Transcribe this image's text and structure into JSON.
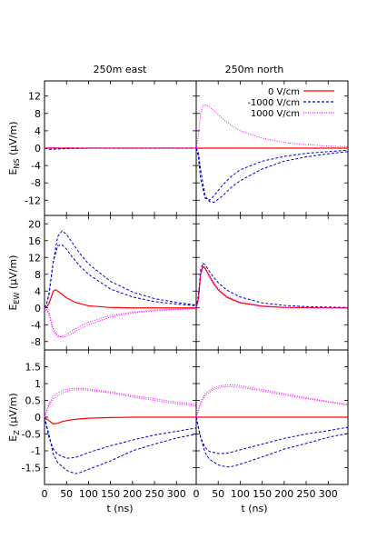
{
  "figure": {
    "columns": [
      "250m east",
      "250m north"
    ],
    "legend": {
      "placement": "top-right of top-right panel",
      "entries": [
        {
          "label": "0 V/cm",
          "color": "#ff0000",
          "dash": "solid"
        },
        {
          "label": "-1000 V/cm",
          "color": "#0000cc",
          "dash": "dashed"
        },
        {
          "label": "1000 V/cm",
          "color": "#ff00ff",
          "dash": "dotted"
        }
      ]
    },
    "xlabel": "t (ns)",
    "xticks": [
      0,
      50,
      100,
      150,
      200,
      250,
      300
    ],
    "xlim": [
      0,
      345
    ]
  },
  "chart_data": [
    {
      "type": "line",
      "column": "250m east",
      "row": 0,
      "ylabel_main": "E",
      "ylabel_sub": "NS",
      "ylabel_unit": "(µV/m)",
      "ylim": [
        -15.5,
        15.5
      ],
      "yticks": [
        -12,
        -8,
        -4,
        0,
        4,
        8,
        12
      ],
      "series": [
        {
          "name": "0 V/cm",
          "x": [
            0,
            50,
            100,
            200,
            345
          ],
          "y": [
            0,
            0,
            0,
            0,
            0
          ]
        },
        {
          "name": "-1000 V/cm",
          "x": [
            0,
            15,
            30,
            50,
            100,
            200,
            345
          ],
          "y": [
            0,
            -0.3,
            -0.2,
            -0.1,
            0,
            0,
            0
          ]
        },
        {
          "name": "1000 V/cm",
          "x": [
            0,
            15,
            30,
            50,
            100,
            200,
            345
          ],
          "y": [
            0,
            0.2,
            0.1,
            0.1,
            0,
            0,
            0
          ]
        }
      ]
    },
    {
      "type": "line",
      "column": "250m north",
      "row": 0,
      "ylabel_main": "E",
      "ylabel_sub": "NS",
      "ylabel_unit": "(µV/m)",
      "ylim": [
        -15.5,
        15.5
      ],
      "yticks": [
        -12,
        -8,
        -4,
        0,
        4,
        8,
        12
      ],
      "series": [
        {
          "name": "0 V/cm",
          "x": [
            0,
            50,
            100,
            200,
            345
          ],
          "y": [
            0,
            0,
            0,
            0,
            0
          ]
        },
        {
          "name": "-1000 V/cm",
          "x": [
            0,
            5,
            10,
            20,
            30,
            40,
            60,
            80,
            100,
            150,
            200,
            250,
            300,
            345
          ],
          "y": [
            0,
            -1,
            -5,
            -11,
            -12.3,
            -12.5,
            -11,
            -9,
            -7.5,
            -4.8,
            -3,
            -2,
            -1.3,
            -0.8
          ]
        },
        {
          "name": "-1000 V/cm",
          "x": [
            0,
            5,
            10,
            20,
            30,
            40,
            60,
            80,
            100,
            150,
            200,
            250,
            300,
            345
          ],
          "y": [
            0,
            -2,
            -7,
            -11.5,
            -12,
            -11,
            -8.5,
            -6.5,
            -5,
            -3,
            -1.9,
            -1.2,
            -0.8,
            -0.5
          ]
        },
        {
          "name": "1000 V/cm",
          "x": [
            0,
            5,
            10,
            15,
            20,
            30,
            40,
            60,
            80,
            100,
            150,
            200,
            250,
            300,
            345
          ],
          "y": [
            0,
            3,
            8,
            9.8,
            10,
            9.5,
            8.6,
            6.8,
            5.2,
            4,
            2.3,
            1.3,
            0.8,
            0.5,
            0.3
          ]
        }
      ]
    },
    {
      "type": "line",
      "column": "250m east",
      "row": 1,
      "ylabel_main": "E",
      "ylabel_sub": "EW",
      "ylabel_unit": "(µV/m)",
      "ylim": [
        -10,
        22
      ],
      "yticks": [
        -8,
        -4,
        0,
        4,
        8,
        12,
        16,
        20
      ],
      "series": [
        {
          "name": "0 V/cm",
          "x": [
            0,
            5,
            10,
            15,
            20,
            25,
            30,
            40,
            50,
            70,
            100,
            150,
            200,
            345
          ],
          "y": [
            0,
            0.2,
            1,
            2.5,
            4,
            4.3,
            4,
            3.2,
            2.4,
            1.3,
            0.5,
            0.1,
            0,
            0
          ]
        },
        {
          "name": "-1000 V/cm",
          "x": [
            0,
            5,
            10,
            20,
            30,
            40,
            50,
            60,
            80,
            100,
            150,
            200,
            250,
            300,
            345
          ],
          "y": [
            0,
            1,
            3,
            11,
            17,
            18.3,
            17.5,
            16,
            13,
            10.5,
            6.3,
            3.8,
            2.2,
            1.3,
            0.7
          ]
        },
        {
          "name": "-1000 V/cm",
          "x": [
            0,
            5,
            10,
            20,
            30,
            40,
            50,
            60,
            80,
            100,
            150,
            200,
            250,
            300,
            345
          ],
          "y": [
            0,
            1,
            3.5,
            11,
            14.8,
            15,
            14,
            12.5,
            10,
            8,
            4.5,
            2.6,
            1.5,
            0.9,
            0.5
          ]
        },
        {
          "name": "1000 V/cm",
          "x": [
            0,
            10,
            20,
            30,
            40,
            50,
            60,
            80,
            100,
            150,
            200,
            250,
            300,
            345
          ],
          "y": [
            0,
            -1,
            -5,
            -6.5,
            -7,
            -6.8,
            -6.2,
            -5,
            -4,
            -2.2,
            -1.2,
            -0.7,
            -0.4,
            -0.2
          ]
        },
        {
          "name": "1000 V/cm",
          "x": [
            0,
            10,
            20,
            30,
            40,
            50,
            60,
            80,
            100,
            150,
            200,
            250,
            300,
            345
          ],
          "y": [
            0,
            -1.5,
            -5.5,
            -6.8,
            -6.8,
            -6.3,
            -5.6,
            -4.4,
            -3.4,
            -1.8,
            -1,
            -0.5,
            -0.3,
            -0.1
          ]
        }
      ]
    },
    {
      "type": "line",
      "column": "250m north",
      "row": 1,
      "ylabel_main": "E",
      "ylabel_sub": "EW",
      "ylabel_unit": "(µV/m)",
      "ylim": [
        -10,
        22
      ],
      "yticks": [
        -8,
        -4,
        0,
        4,
        8,
        12,
        16,
        20
      ],
      "series": [
        {
          "name": "0 V/cm",
          "x": [
            0,
            5,
            10,
            15,
            20,
            30,
            40,
            50,
            70,
            100,
            150,
            200,
            345
          ],
          "y": [
            0,
            2,
            8,
            9.8,
            9.5,
            7.5,
            5.7,
            4.3,
            2.5,
            1.2,
            0.4,
            0.1,
            0
          ]
        },
        {
          "name": "-1000 V/cm",
          "x": [
            0,
            5,
            10,
            15,
            20,
            30,
            40,
            50,
            70,
            100,
            150,
            200,
            250,
            345
          ],
          "y": [
            0,
            3,
            9,
            10.6,
            10.3,
            8.7,
            7.2,
            6,
            4.2,
            2.6,
            1.2,
            0.6,
            0.3,
            0.1
          ]
        },
        {
          "name": "1000 V/cm",
          "x": [
            0,
            5,
            10,
            15,
            20,
            30,
            40,
            50,
            70,
            100,
            150,
            200,
            345
          ],
          "y": [
            0,
            2.5,
            8.5,
            10.2,
            9.7,
            7.8,
            6,
            4.6,
            2.8,
            1.4,
            0.5,
            0.2,
            0
          ]
        }
      ]
    },
    {
      "type": "line",
      "column": "250m east",
      "row": 2,
      "ylabel_main": "E",
      "ylabel_sub": "Z",
      "ylabel_unit": "(µV/m)",
      "ylim": [
        -2,
        2
      ],
      "yticks": [
        -1.5,
        -1,
        -0.5,
        0,
        0.5,
        1,
        1.5
      ],
      "series": [
        {
          "name": "0 V/cm",
          "x": [
            0,
            10,
            20,
            30,
            40,
            60,
            80,
            100,
            150,
            200,
            345
          ],
          "y": [
            0,
            -0.1,
            -0.2,
            -0.18,
            -0.13,
            -0.08,
            -0.05,
            -0.03,
            -0.01,
            0,
            0
          ]
        },
        {
          "name": "-1000 V/cm",
          "x": [
            0,
            10,
            20,
            30,
            50,
            70,
            80,
            100,
            150,
            200,
            250,
            300,
            345
          ],
          "y": [
            0,
            -0.5,
            -1.1,
            -1.35,
            -1.58,
            -1.68,
            -1.65,
            -1.55,
            -1.3,
            -1,
            -0.8,
            -0.62,
            -0.5
          ]
        },
        {
          "name": "-1000 V/cm",
          "x": [
            0,
            10,
            20,
            30,
            50,
            70,
            80,
            100,
            150,
            200,
            250,
            300,
            345
          ],
          "y": [
            0,
            -0.6,
            -0.95,
            -1.1,
            -1.22,
            -1.2,
            -1.15,
            -1.05,
            -0.85,
            -0.68,
            -0.53,
            -0.42,
            -0.32
          ]
        },
        {
          "name": "1000 V/cm",
          "x": [
            0,
            10,
            20,
            40,
            60,
            80,
            100,
            150,
            200,
            250,
            300,
            345
          ],
          "y": [
            0,
            0.4,
            0.63,
            0.8,
            0.85,
            0.86,
            0.84,
            0.75,
            0.64,
            0.55,
            0.45,
            0.38
          ]
        },
        {
          "name": "1000 V/cm",
          "x": [
            0,
            10,
            20,
            40,
            60,
            80,
            100,
            150,
            200,
            250,
            300,
            345
          ],
          "y": [
            0,
            0.35,
            0.55,
            0.72,
            0.8,
            0.82,
            0.8,
            0.72,
            0.6,
            0.5,
            0.4,
            0.33
          ]
        }
      ]
    },
    {
      "type": "line",
      "column": "250m north",
      "row": 2,
      "ylabel_main": "E",
      "ylabel_sub": "Z",
      "ylabel_unit": "(µV/m)",
      "ylim": [
        -2,
        2
      ],
      "yticks": [
        -1.5,
        -1,
        -0.5,
        0,
        0.5,
        1,
        1.5
      ],
      "series": [
        {
          "name": "0 V/cm",
          "x": [
            0,
            50,
            100,
            200,
            345
          ],
          "y": [
            0,
            0,
            0,
            0,
            0
          ]
        },
        {
          "name": "-1000 V/cm",
          "x": [
            0,
            10,
            20,
            30,
            50,
            70,
            80,
            100,
            150,
            200,
            250,
            300,
            345
          ],
          "y": [
            0,
            -0.6,
            -1.05,
            -1.25,
            -1.42,
            -1.48,
            -1.47,
            -1.4,
            -1.18,
            -0.95,
            -0.78,
            -0.6,
            -0.48
          ]
        },
        {
          "name": "-1000 V/cm",
          "x": [
            0,
            10,
            20,
            30,
            50,
            70,
            80,
            100,
            150,
            200,
            250,
            300,
            345
          ],
          "y": [
            0,
            -0.6,
            -0.9,
            -1.02,
            -1.08,
            -1.07,
            -1.04,
            -0.97,
            -0.8,
            -0.63,
            -0.5,
            -0.4,
            -0.3
          ]
        },
        {
          "name": "1000 V/cm",
          "x": [
            0,
            10,
            20,
            40,
            60,
            80,
            100,
            150,
            200,
            250,
            300,
            345
          ],
          "y": [
            0,
            0.45,
            0.7,
            0.88,
            0.95,
            0.96,
            0.94,
            0.82,
            0.7,
            0.58,
            0.47,
            0.38
          ]
        },
        {
          "name": "1000 V/cm",
          "x": [
            0,
            10,
            20,
            40,
            60,
            80,
            100,
            150,
            200,
            250,
            300,
            345
          ],
          "y": [
            0,
            0.4,
            0.65,
            0.83,
            0.9,
            0.91,
            0.89,
            0.78,
            0.66,
            0.55,
            0.45,
            0.36
          ]
        }
      ]
    }
  ]
}
